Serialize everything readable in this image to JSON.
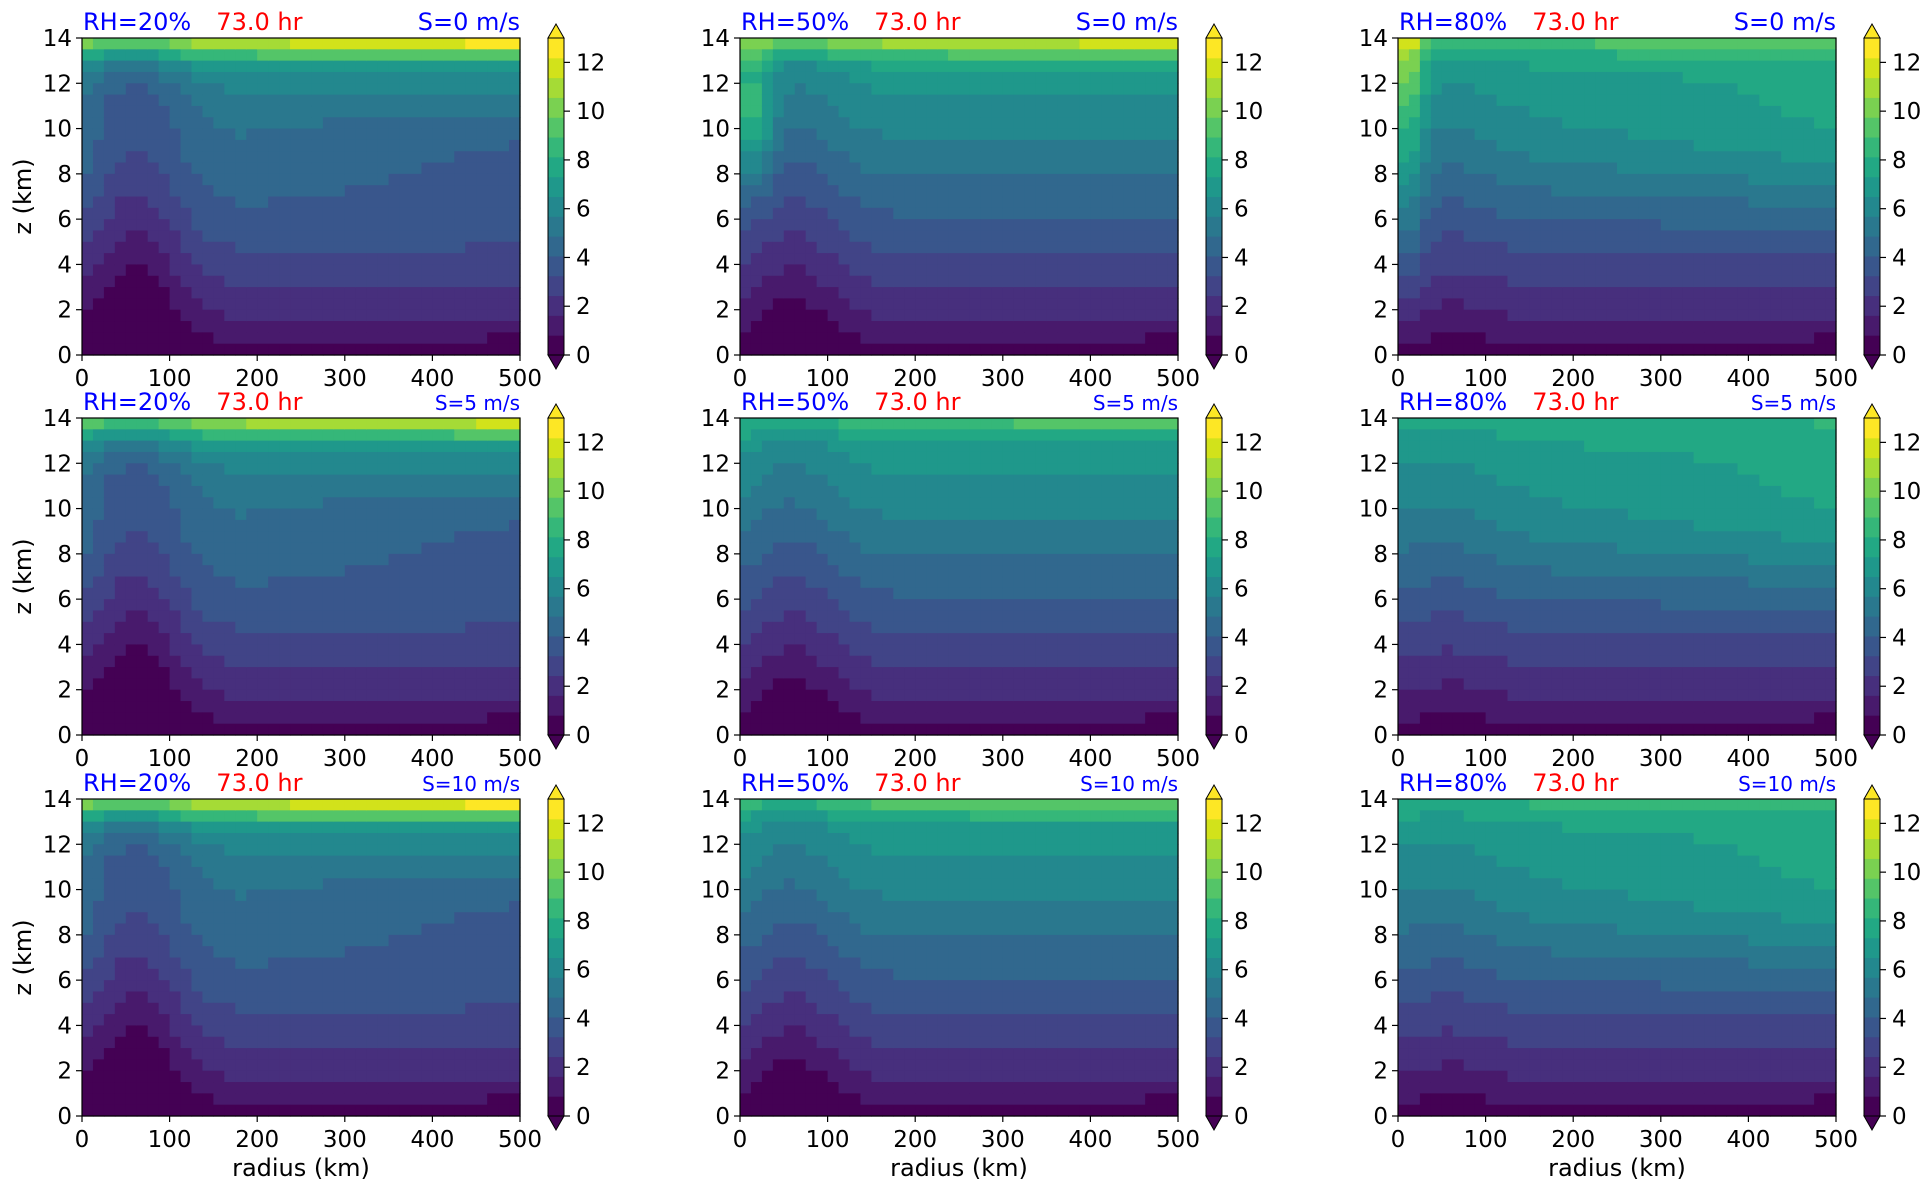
{
  "figure": {
    "colors": {
      "rh_title": "#0000ff",
      "time_title": "#ff0000",
      "shear_title": "#0000ff",
      "axis": "#000000"
    },
    "colormap": [
      "#440154",
      "#481a6c",
      "#472f7d",
      "#414487",
      "#39568c",
      "#31688e",
      "#2a788e",
      "#23888e",
      "#1f988b",
      "#22a884",
      "#35b779",
      "#54c568",
      "#7ad151",
      "#a5db36",
      "#d2e21b",
      "#fde725"
    ]
  },
  "chart_data": [
    {
      "type": "contour",
      "panel": "RH20-S0",
      "title_rh": "RH=20%",
      "title_time": "73.0 hr",
      "title_shear": "S=0 m/s",
      "xlabel": "",
      "ylabel": "z (km)",
      "xlim": [
        0,
        500
      ],
      "ylim": [
        0,
        14
      ],
      "xticks": [
        "0",
        "100",
        "200",
        "300",
        "400",
        "500"
      ],
      "yticks": [
        "0",
        "2",
        "4",
        "6",
        "8",
        "10",
        "12",
        "14"
      ],
      "colorbar": {
        "ticks": [
          "0",
          "2",
          "4",
          "6",
          "8",
          "10",
          "12"
        ],
        "range": [
          0,
          13
        ],
        "extend": "both"
      }
    },
    {
      "type": "contour",
      "panel": "RH50-S0",
      "title_rh": "RH=50%",
      "title_time": "73.0 hr",
      "title_shear": "S=0 m/s",
      "xlabel": "",
      "ylabel": "",
      "xlim": [
        0,
        500
      ],
      "ylim": [
        0,
        14
      ],
      "xticks": [
        "0",
        "100",
        "200",
        "300",
        "400",
        "500"
      ],
      "yticks": [
        "0",
        "2",
        "4",
        "6",
        "8",
        "10",
        "12",
        "14"
      ],
      "colorbar": {
        "ticks": [
          "0",
          "2",
          "4",
          "6",
          "8",
          "10",
          "12"
        ],
        "range": [
          0,
          13
        ],
        "extend": "both"
      }
    },
    {
      "type": "contour",
      "panel": "RH80-S0",
      "title_rh": "RH=80%",
      "title_time": "73.0 hr",
      "title_shear": "S=0 m/s",
      "xlabel": "",
      "ylabel": "",
      "xlim": [
        0,
        500
      ],
      "ylim": [
        0,
        14
      ],
      "xticks": [
        "0",
        "100",
        "200",
        "300",
        "400",
        "500"
      ],
      "yticks": [
        "0",
        "2",
        "4",
        "6",
        "8",
        "10",
        "12",
        "14"
      ],
      "colorbar": {
        "ticks": [
          "0",
          "2",
          "4",
          "6",
          "8",
          "10",
          "12"
        ],
        "range": [
          0,
          13
        ],
        "extend": "both"
      }
    },
    {
      "type": "contour",
      "panel": "RH20-S5",
      "title_rh": "RH=20%",
      "title_time": "73.0 hr",
      "title_shear": "S=5 m/s",
      "xlabel": "",
      "ylabel": "z (km)",
      "xlim": [
        0,
        500
      ],
      "ylim": [
        0,
        14
      ],
      "xticks": [
        "0",
        "100",
        "200",
        "300",
        "400",
        "500"
      ],
      "yticks": [
        "0",
        "2",
        "4",
        "6",
        "8",
        "10",
        "12",
        "14"
      ],
      "colorbar": {
        "ticks": [
          "0",
          "2",
          "4",
          "6",
          "8",
          "10",
          "12"
        ],
        "range": [
          0,
          13
        ],
        "extend": "both"
      }
    },
    {
      "type": "contour",
      "panel": "RH50-S5",
      "title_rh": "RH=50%",
      "title_time": "73.0 hr",
      "title_shear": "S=5 m/s",
      "xlabel": "",
      "ylabel": "",
      "xlim": [
        0,
        500
      ],
      "ylim": [
        0,
        14
      ],
      "xticks": [
        "0",
        "100",
        "200",
        "300",
        "400",
        "500"
      ],
      "yticks": [
        "0",
        "2",
        "4",
        "6",
        "8",
        "10",
        "12",
        "14"
      ],
      "colorbar": {
        "ticks": [
          "0",
          "2",
          "4",
          "6",
          "8",
          "10",
          "12"
        ],
        "range": [
          0,
          13
        ],
        "extend": "both"
      }
    },
    {
      "type": "contour",
      "panel": "RH80-S5",
      "title_rh": "RH=80%",
      "title_time": "73.0 hr",
      "title_shear": "S=5 m/s",
      "xlabel": "",
      "ylabel": "",
      "xlim": [
        0,
        500
      ],
      "ylim": [
        0,
        14
      ],
      "xticks": [
        "0",
        "100",
        "200",
        "300",
        "400",
        "500"
      ],
      "yticks": [
        "0",
        "2",
        "4",
        "6",
        "8",
        "10",
        "12",
        "14"
      ],
      "colorbar": {
        "ticks": [
          "0",
          "2",
          "4",
          "6",
          "8",
          "10",
          "12"
        ],
        "range": [
          0,
          13
        ],
        "extend": "both"
      }
    },
    {
      "type": "contour",
      "panel": "RH20-S10",
      "title_rh": "RH=20%",
      "title_time": "73.0 hr",
      "title_shear": "S=10 m/s",
      "xlabel": "radius (km)",
      "ylabel": "z (km)",
      "xlim": [
        0,
        500
      ],
      "ylim": [
        0,
        14
      ],
      "xticks": [
        "0",
        "100",
        "200",
        "300",
        "400",
        "500"
      ],
      "yticks": [
        "0",
        "2",
        "4",
        "6",
        "8",
        "10",
        "12",
        "14"
      ],
      "colorbar": {
        "ticks": [
          "0",
          "2",
          "4",
          "6",
          "8",
          "10",
          "12"
        ],
        "range": [
          0,
          13
        ],
        "extend": "both"
      }
    },
    {
      "type": "contour",
      "panel": "RH50-S10",
      "title_rh": "RH=50%",
      "title_time": "73.0 hr",
      "title_shear": "S=10 m/s",
      "xlabel": "radius (km)",
      "ylabel": "",
      "xlim": [
        0,
        500
      ],
      "ylim": [
        0,
        14
      ],
      "xticks": [
        "0",
        "100",
        "200",
        "300",
        "400",
        "500"
      ],
      "yticks": [
        "0",
        "2",
        "4",
        "6",
        "8",
        "10",
        "12",
        "14"
      ],
      "colorbar": {
        "ticks": [
          "0",
          "2",
          "4",
          "6",
          "8",
          "10",
          "12"
        ],
        "range": [
          0,
          13
        ],
        "extend": "both"
      }
    },
    {
      "type": "contour",
      "panel": "RH80-S10",
      "title_rh": "RH=80%",
      "title_time": "73.0 hr",
      "title_shear": "S=10 m/s",
      "xlabel": "radius (km)",
      "ylabel": "",
      "xlim": [
        0,
        500
      ],
      "ylim": [
        0,
        14
      ],
      "xticks": [
        "0",
        "100",
        "200",
        "300",
        "400",
        "500"
      ],
      "yticks": [
        "0",
        "2",
        "4",
        "6",
        "8",
        "10",
        "12",
        "14"
      ],
      "colorbar": {
        "ticks": [
          "0",
          "2",
          "4",
          "6",
          "8",
          "10",
          "12"
        ],
        "range": [
          0,
          13
        ],
        "extend": "both"
      }
    }
  ]
}
